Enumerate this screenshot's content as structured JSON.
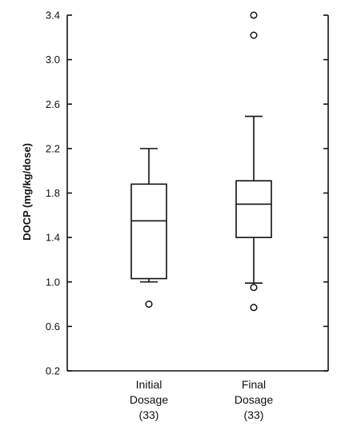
{
  "chart_data": {
    "type": "boxplot",
    "ylabel": "DOCP (mg/kg/dose)",
    "xlabel": "",
    "ylim": [
      0.2,
      3.4
    ],
    "yticks": [
      "0.2",
      "0.6",
      "1.0",
      "1.4",
      "1.8",
      "2.2",
      "2.6",
      "3.0",
      "3.4"
    ],
    "categories": [
      {
        "lines": [
          "Initial",
          "Dosage",
          "(33)"
        ]
      },
      {
        "lines": [
          "Final",
          "Dosage",
          "(33)"
        ]
      }
    ],
    "boxes": [
      {
        "whisker_low": 1.0,
        "q1": 1.03,
        "median": 1.55,
        "q3": 1.88,
        "whisker_high": 2.2,
        "outliers": [
          0.8
        ]
      },
      {
        "whisker_low": 0.99,
        "q1": 1.4,
        "median": 1.7,
        "q3": 1.91,
        "whisker_high": 2.49,
        "outliers": [
          0.95,
          0.77,
          3.22,
          3.4
        ]
      }
    ],
    "grid": false,
    "legend": "none"
  },
  "colors": {
    "ink": "#111111",
    "background": "#ffffff"
  }
}
